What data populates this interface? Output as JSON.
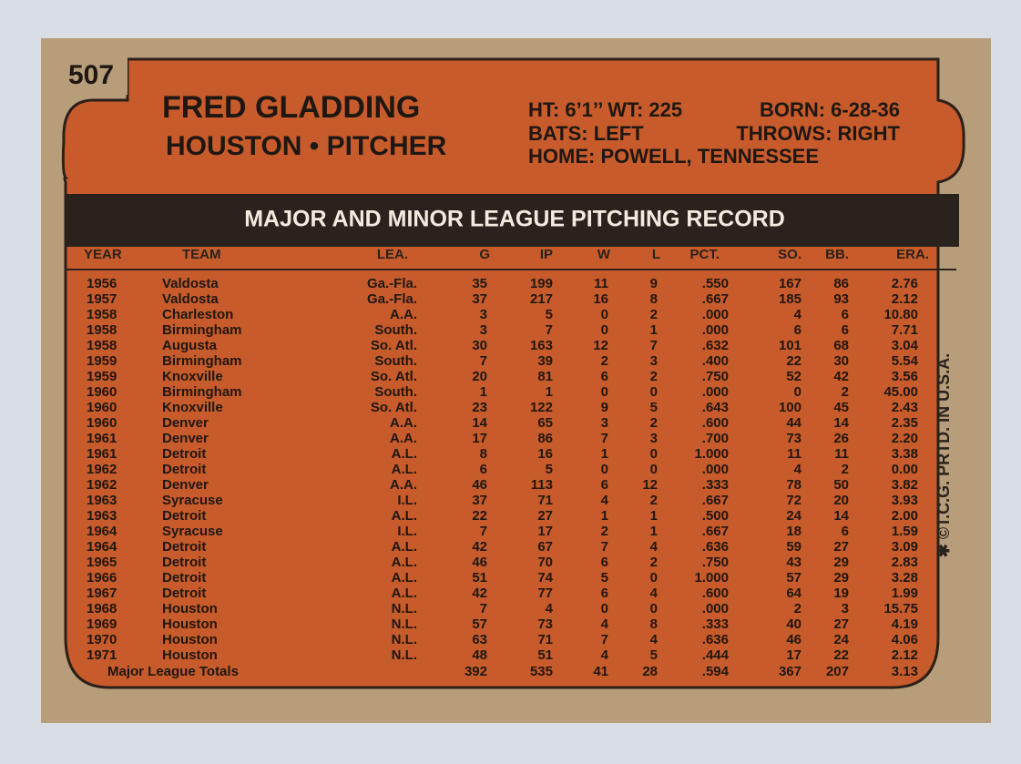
{
  "card_number": "507",
  "header": {
    "name": "FRED GLADDING",
    "team_position": "HOUSTON • PITCHER",
    "info": {
      "height_weight": "HT: 6’1’’ WT: 225",
      "born": "BORN: 6-28-36",
      "bats": "BATS: LEFT",
      "throws": "THROWS: RIGHT",
      "home": "HOME: POWELL, TENNESSEE"
    }
  },
  "table": {
    "title": "MAJOR AND MINOR LEAGUE PITCHING RECORD",
    "columns": [
      "YEAR",
      "TEAM",
      "LEA.",
      "G",
      "IP",
      "W",
      "L",
      "PCT.",
      "SO.",
      "BB.",
      "ERA."
    ],
    "rows": [
      [
        "1956",
        "Valdosta",
        "Ga.-Fla.",
        "35",
        "199",
        "11",
        "9",
        ".550",
        "167",
        "86",
        "2.76"
      ],
      [
        "1957",
        "Valdosta",
        "Ga.-Fla.",
        "37",
        "217",
        "16",
        "8",
        ".667",
        "185",
        "93",
        "2.12"
      ],
      [
        "1958",
        "Charleston",
        "A.A.",
        "3",
        "5",
        "0",
        "2",
        ".000",
        "4",
        "6",
        "10.80"
      ],
      [
        "1958",
        "Birmingham",
        "South.",
        "3",
        "7",
        "0",
        "1",
        ".000",
        "6",
        "6",
        "7.71"
      ],
      [
        "1958",
        "Augusta",
        "So. Atl.",
        "30",
        "163",
        "12",
        "7",
        ".632",
        "101",
        "68",
        "3.04"
      ],
      [
        "1959",
        "Birmingham",
        "South.",
        "7",
        "39",
        "2",
        "3",
        ".400",
        "22",
        "30",
        "5.54"
      ],
      [
        "1959",
        "Knoxville",
        "So. Atl.",
        "20",
        "81",
        "6",
        "2",
        ".750",
        "52",
        "42",
        "3.56"
      ],
      [
        "1960",
        "Birmingham",
        "South.",
        "1",
        "1",
        "0",
        "0",
        ".000",
        "0",
        "2",
        "45.00"
      ],
      [
        "1960",
        "Knoxville",
        "So. Atl.",
        "23",
        "122",
        "9",
        "5",
        ".643",
        "100",
        "45",
        "2.43"
      ],
      [
        "1960",
        "Denver",
        "A.A.",
        "14",
        "65",
        "3",
        "2",
        ".600",
        "44",
        "14",
        "2.35"
      ],
      [
        "1961",
        "Denver",
        "A.A.",
        "17",
        "86",
        "7",
        "3",
        ".700",
        "73",
        "26",
        "2.20"
      ],
      [
        "1961",
        "Detroit",
        "A.L.",
        "8",
        "16",
        "1",
        "0",
        "1.000",
        "11",
        "11",
        "3.38"
      ],
      [
        "1962",
        "Detroit",
        "A.L.",
        "6",
        "5",
        "0",
        "0",
        ".000",
        "4",
        "2",
        "0.00"
      ],
      [
        "1962",
        "Denver",
        "A.A.",
        "46",
        "113",
        "6",
        "12",
        ".333",
        "78",
        "50",
        "3.82"
      ],
      [
        "1963",
        "Syracuse",
        "I.L.",
        "37",
        "71",
        "4",
        "2",
        ".667",
        "72",
        "20",
        "3.93"
      ],
      [
        "1963",
        "Detroit",
        "A.L.",
        "22",
        "27",
        "1",
        "1",
        ".500",
        "24",
        "14",
        "2.00"
      ],
      [
        "1964",
        "Syracuse",
        "I.L.",
        "7",
        "17",
        "2",
        "1",
        ".667",
        "18",
        "6",
        "1.59"
      ],
      [
        "1964",
        "Detroit",
        "A.L.",
        "42",
        "67",
        "7",
        "4",
        ".636",
        "59",
        "27",
        "3.09"
      ],
      [
        "1965",
        "Detroit",
        "A.L.",
        "46",
        "70",
        "6",
        "2",
        ".750",
        "43",
        "29",
        "2.83"
      ],
      [
        "1966",
        "Detroit",
        "A.L.",
        "51",
        "74",
        "5",
        "0",
        "1.000",
        "57",
        "29",
        "3.28"
      ],
      [
        "1967",
        "Detroit",
        "A.L.",
        "42",
        "77",
        "6",
        "4",
        ".600",
        "64",
        "19",
        "1.99"
      ],
      [
        "1968",
        "Houston",
        "N.L.",
        "7",
        "4",
        "0",
        "0",
        ".000",
        "2",
        "3",
        "15.75"
      ],
      [
        "1969",
        "Houston",
        "N.L.",
        "57",
        "73",
        "4",
        "8",
        ".333",
        "40",
        "27",
        "4.19"
      ],
      [
        "1970",
        "Houston",
        "N.L.",
        "63",
        "71",
        "7",
        "4",
        ".636",
        "46",
        "24",
        "4.06"
      ],
      [
        "1971",
        "Houston",
        "N.L.",
        "48",
        "51",
        "4",
        "5",
        ".444",
        "17",
        "22",
        "2.12"
      ]
    ],
    "totals": [
      "Major League Totals",
      "392",
      "535",
      "41",
      "28",
      ".594",
      "367",
      "207",
      "3.13"
    ]
  },
  "footer": "✱ ©T.C.G. PRTD. IN U.S.A."
}
